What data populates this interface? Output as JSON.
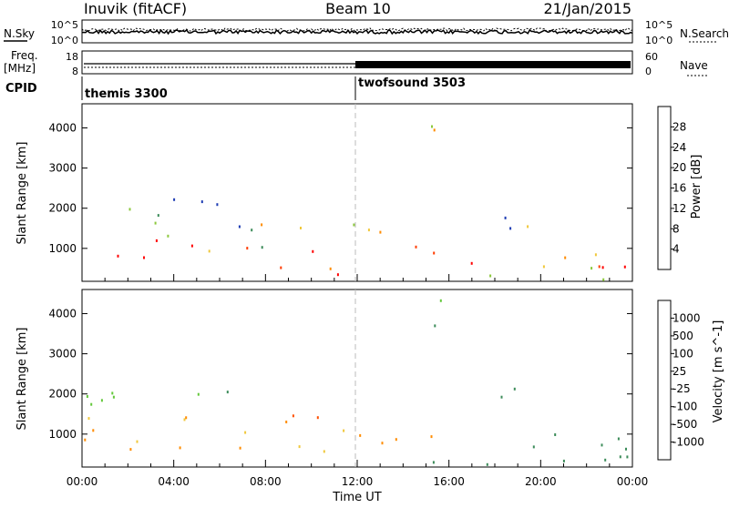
{
  "header": {
    "station": "Inuvik (fitACF)",
    "beam": "Beam 10",
    "date": "21/Jan/2015"
  },
  "noise_panel": {
    "left_label": "N.Sky",
    "right_label": "N.Search",
    "left_ticks": [
      "10^5",
      "10^0"
    ],
    "right_ticks": [
      "10^5",
      "10^0"
    ]
  },
  "freq_panel": {
    "left_label_1": "Freq.",
    "left_label_2": "[MHz]",
    "right_label": "Nave",
    "left_ticks": [
      "18",
      "8"
    ],
    "right_ticks": [
      "60",
      "0"
    ]
  },
  "cpid_panel": {
    "label": "CPID",
    "programs": [
      {
        "name": "themis 3300",
        "start_hour": 0
      },
      {
        "name": "twofsound 3503",
        "start_hour": 12
      }
    ]
  },
  "x_axis": {
    "label": "Time UT",
    "ticks": [
      "00:00",
      "04:00",
      "08:00",
      "12:00",
      "16:00",
      "20:00",
      "00:00"
    ]
  },
  "power_colorbar": {
    "label": "Power [dB]",
    "ticks": [
      "28",
      "24",
      "20",
      "16",
      "12",
      "8",
      "4"
    ],
    "colors": [
      "#0000ff",
      "#1e3cb4",
      "#3c8c5a",
      "#8cc83c",
      "#f0c83c",
      "#ff8c00",
      "#ff3c00",
      "#ff0000"
    ]
  },
  "velocity_colorbar": {
    "label": "Velocity [m s^-1]",
    "ticks": [
      "1000",
      "500",
      "100",
      "25",
      "-25",
      "-100",
      "-500",
      "-1000"
    ],
    "colors": [
      "#1e3cc8",
      "#3c78c8",
      "#3c8c5a",
      "#64c83c",
      "#bebebe",
      "#f0c83c",
      "#ff8c00",
      "#ff5000",
      "#ff0000"
    ]
  },
  "chart_data": {
    "type": "heatmap",
    "xlim_hours": [
      0,
      24
    ],
    "ylim_km": [
      180,
      4600
    ],
    "y_ticks": [
      "1000",
      "2000",
      "3000",
      "4000"
    ],
    "ylabel": "Slant Range [km]",
    "panels": [
      {
        "quantity": "Power",
        "scatter_regions": [
          {
            "t": [
              0,
              7.5
            ],
            "r": [
              600,
              1300
            ],
            "value": 28
          },
          {
            "t": [
              0,
              7.5
            ],
            "r": [
              1300,
              1600
            ],
            "value": 10
          },
          {
            "t": [
              0,
              7.5
            ],
            "r": [
              1600,
              2300
            ],
            "value": 14
          },
          {
            "t": [
              6.5,
              12
            ],
            "r": [
              300,
              1000
            ],
            "value": 26
          },
          {
            "t": [
              6.5,
              12
            ],
            "r": [
              1000,
              1700
            ],
            "value": 16
          },
          {
            "t": [
              12,
              15.5
            ],
            "r": [
              700,
              1700
            ],
            "value": 22
          },
          {
            "t": [
              12,
              24
            ],
            "r": [
              250,
              700
            ],
            "value": 24
          },
          {
            "t": [
              17,
              20
            ],
            "r": [
              1300,
              2300
            ],
            "value": 14
          },
          {
            "t": [
              15,
              17
            ],
            "r": [
              3700,
              4400
            ],
            "value": 18
          },
          {
            "t": [
              20,
              24
            ],
            "r": [
              400,
              1200
            ],
            "value": 20
          }
        ]
      },
      {
        "quantity": "Velocity",
        "scatter_regions": [
          {
            "t": [
              0,
              7.5
            ],
            "r": [
              600,
              1500
            ],
            "value": 100
          },
          {
            "t": [
              0,
              7.5
            ],
            "r": [
              1500,
              2300
            ],
            "value": -100
          },
          {
            "t": [
              6.5,
              12
            ],
            "r": [
              600,
              1600
            ],
            "value": 100
          },
          {
            "t": [
              9,
              11.5
            ],
            "r": [
              900,
              1700
            ],
            "value": 800
          },
          {
            "t": [
              12,
              15.5
            ],
            "r": [
              700,
              1700
            ],
            "value": 200
          },
          {
            "t": [
              12,
              24
            ],
            "r": [
              250,
              800
            ],
            "value": -200
          },
          {
            "t": [
              17.5,
              19.5
            ],
            "r": [
              1300,
              2300
            ],
            "value": -300
          },
          {
            "t": [
              15,
              17
            ],
            "r": [
              3700,
              4400
            ],
            "value": -100
          },
          {
            "t": [
              20,
              24
            ],
            "r": [
              400,
              1200
            ],
            "value": -400
          }
        ]
      }
    ]
  }
}
